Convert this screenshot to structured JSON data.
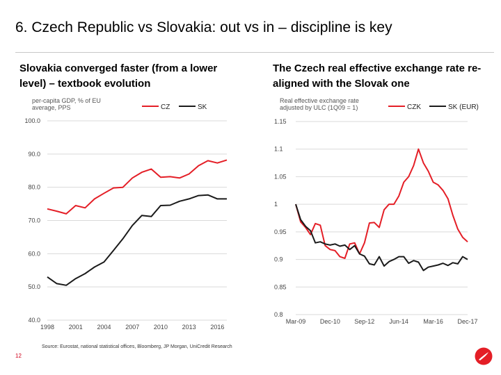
{
  "header": {
    "title": "6. Czech Republic vs Slovakia: out vs in – discipline is key"
  },
  "left_panel": {
    "subtitle": "Slovakia converged faster (from a lower level) – textbook evolution"
  },
  "right_panel": {
    "subtitle": "The Czech real effective exchange rate re-aligned with the Slovak one"
  },
  "footer": {
    "source": "Source: Eurostat, national statistical offices, Bloomberg, JP Morgan, UniCredit Research",
    "page_number": "12"
  },
  "colors": {
    "red": "#e41e26",
    "black": "#1a1a1a",
    "grid": "#d9d9d9"
  },
  "chart_data": [
    {
      "type": "line",
      "title": "per-capita GDP, % of EU average, PPS",
      "title_lines": [
        "per-capita GDP, % of EU",
        "average, PPS"
      ],
      "x": [
        1998,
        1999,
        2000,
        2001,
        2002,
        2003,
        2004,
        2005,
        2006,
        2007,
        2008,
        2009,
        2010,
        2011,
        2012,
        2013,
        2014,
        2015,
        2016,
        2017
      ],
      "xticks": [
        1998,
        2001,
        2004,
        2007,
        2010,
        2013,
        2016
      ],
      "xlim": [
        1998,
        2017
      ],
      "ylim": [
        40,
        100
      ],
      "yticks": [
        40,
        50,
        60,
        70,
        80,
        90,
        100
      ],
      "ytick_labels": [
        "40.0",
        "50.0",
        "60.0",
        "70.0",
        "80.0",
        "90.0",
        "100.0"
      ],
      "grid": true,
      "series": [
        {
          "name": "CZ",
          "color": "#e41e26",
          "values": [
            73.5,
            72.8,
            72.0,
            74.5,
            73.8,
            76.5,
            78.2,
            79.8,
            80.0,
            82.8,
            84.5,
            85.5,
            83.0,
            83.2,
            82.8,
            84.0,
            86.5,
            88.0,
            87.3,
            88.2
          ]
        },
        {
          "name": "SK",
          "color": "#1a1a1a",
          "values": [
            53.0,
            51.0,
            50.5,
            52.5,
            54.0,
            56.0,
            57.5,
            61.0,
            64.5,
            68.5,
            71.5,
            71.2,
            74.5,
            74.6,
            75.8,
            76.5,
            77.5,
            77.7,
            76.5,
            76.5
          ]
        }
      ]
    },
    {
      "type": "line",
      "title": "Real effective exchange rate adjusted by ULC (1Q09 = 1)",
      "title_lines": [
        "Real effective exchange rate",
        "adjusted by ULC (1Q09 = 1)"
      ],
      "xlim": [
        2009.17,
        2017.92
      ],
      "xticks": [
        2009.17,
        2010.92,
        2012.67,
        2014.42,
        2016.17,
        2017.92
      ],
      "xtick_labels": [
        "Mar-09",
        "Dec-10",
        "Sep-12",
        "Jun-14",
        "Mar-16",
        "Dec-17"
      ],
      "ylim": [
        0.8,
        1.15
      ],
      "yticks": [
        0.8,
        0.85,
        0.9,
        0.95,
        1,
        1.05,
        1.1,
        1.15
      ],
      "ytick_labels": [
        "0.8",
        "0.85",
        "0.9",
        "0.95",
        "1",
        "1.05",
        "1.1",
        "1.15"
      ],
      "grid": true,
      "series": [
        {
          "name": "CZK",
          "color": "#e41e26",
          "x": [
            2009.17,
            2009.42,
            2009.67,
            2009.92,
            2010.17,
            2010.42,
            2010.67,
            2010.92,
            2011.17,
            2011.42,
            2011.67,
            2011.92,
            2012.17,
            2012.42,
            2012.67,
            2012.92,
            2013.17,
            2013.42,
            2013.67,
            2013.92,
            2014.17,
            2014.42,
            2014.67,
            2014.92,
            2015.17,
            2015.42,
            2015.67,
            2015.92,
            2016.17,
            2016.42,
            2016.67,
            2016.92,
            2017.17,
            2017.42,
            2017.67,
            2017.92
          ],
          "values": [
            1.0,
            0.968,
            0.958,
            0.945,
            0.965,
            0.962,
            0.925,
            0.918,
            0.916,
            0.905,
            0.902,
            0.928,
            0.93,
            0.91,
            0.93,
            0.966,
            0.967,
            0.958,
            0.99,
            1.0,
            1.0,
            1.015,
            1.04,
            1.05,
            1.07,
            1.1,
            1.075,
            1.06,
            1.04,
            1.035,
            1.025,
            1.01,
            0.98,
            0.955,
            0.94,
            0.932
          ]
        },
        {
          "name": "SK (EUR)",
          "color": "#1a1a1a",
          "x": [
            2009.17,
            2009.42,
            2009.67,
            2009.92,
            2010.17,
            2010.42,
            2010.67,
            2010.92,
            2011.17,
            2011.42,
            2011.67,
            2011.92,
            2012.17,
            2012.42,
            2012.67,
            2012.92,
            2013.17,
            2013.42,
            2013.67,
            2013.92,
            2014.17,
            2014.42,
            2014.67,
            2014.92,
            2015.17,
            2015.42,
            2015.67,
            2015.92,
            2016.17,
            2016.42,
            2016.67,
            2016.92,
            2017.17,
            2017.42,
            2017.67,
            2017.92
          ],
          "values": [
            1.0,
            0.972,
            0.96,
            0.952,
            0.93,
            0.932,
            0.928,
            0.926,
            0.928,
            0.924,
            0.926,
            0.918,
            0.925,
            0.91,
            0.906,
            0.892,
            0.89,
            0.905,
            0.888,
            0.896,
            0.9,
            0.905,
            0.905,
            0.893,
            0.898,
            0.895,
            0.88,
            0.886,
            0.888,
            0.89,
            0.893,
            0.889,
            0.894,
            0.892,
            0.905,
            0.9
          ]
        }
      ]
    }
  ]
}
